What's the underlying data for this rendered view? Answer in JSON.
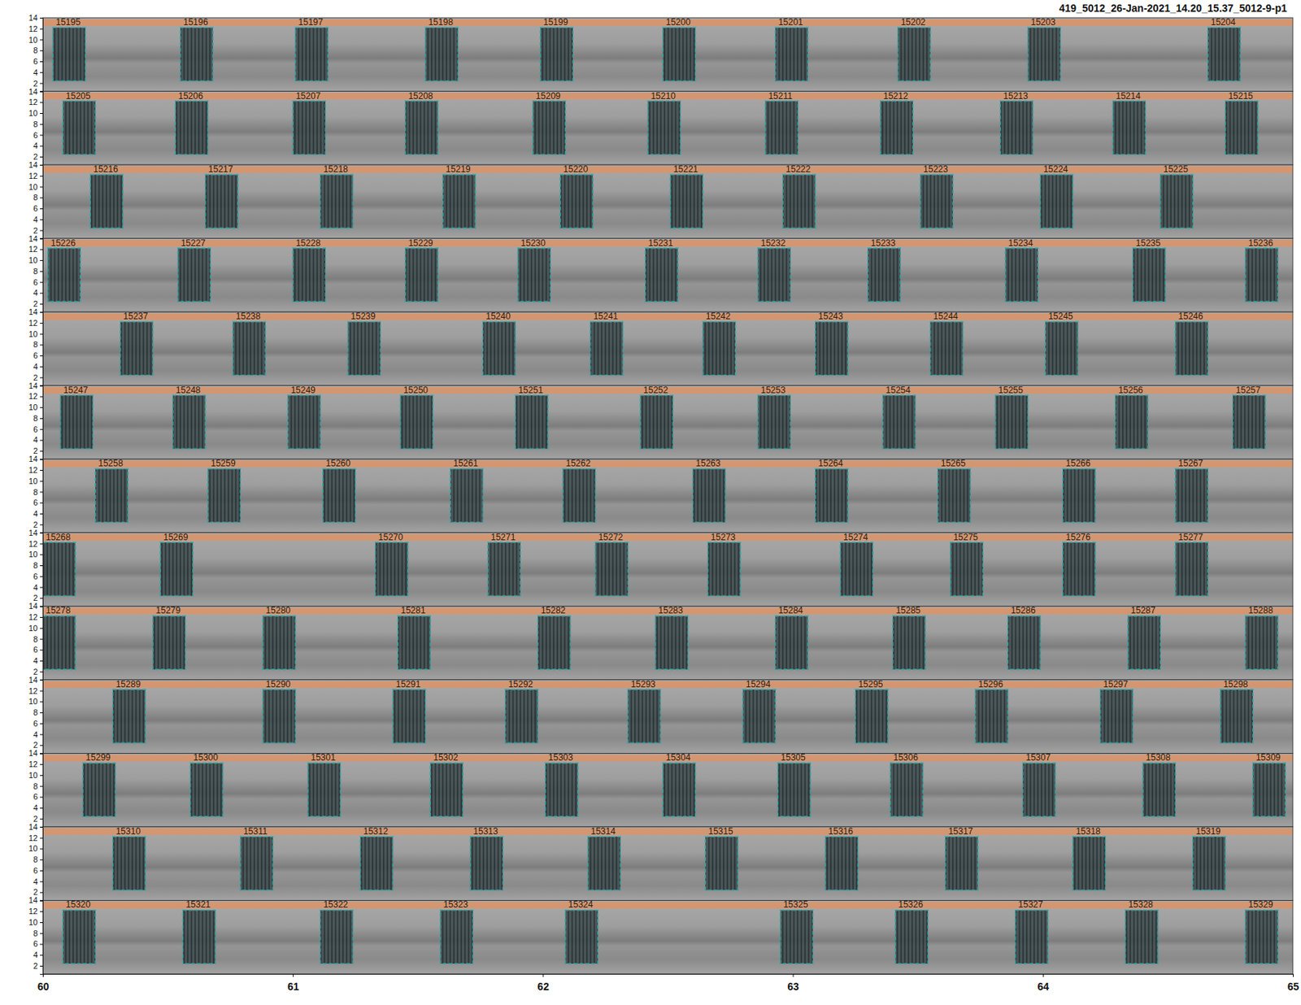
{
  "chart_data": {
    "type": "spectrogram_detections",
    "title": "419_5012_26-Jan-2021_14.20_15.37_5012-9-p1",
    "xlim": [
      60,
      65
    ],
    "xticks": [
      60,
      61,
      62,
      63,
      64,
      65
    ],
    "ylim": [
      0.5,
      14
    ],
    "yticks": [
      2,
      4,
      6,
      8,
      10,
      12,
      14
    ],
    "freq_low": 2.4,
    "freq_high": 12.2,
    "rows": [
      {
        "detections": [
          {
            "label": "15195",
            "start": 60.04,
            "end": 60.17
          },
          {
            "label": "15196",
            "start": 60.55,
            "end": 60.68
          },
          {
            "label": "15197",
            "start": 61.01,
            "end": 61.14
          },
          {
            "label": "15198",
            "start": 61.53,
            "end": 61.66
          },
          {
            "label": "15199",
            "start": 61.99,
            "end": 62.12
          },
          {
            "label": "15200",
            "start": 62.48,
            "end": 62.61
          },
          {
            "label": "15201",
            "start": 62.93,
            "end": 63.06
          },
          {
            "label": "15202",
            "start": 63.42,
            "end": 63.55
          },
          {
            "label": "15203",
            "start": 63.94,
            "end": 64.07
          },
          {
            "label": "15204",
            "start": 64.66,
            "end": 64.79
          }
        ]
      },
      {
        "detections": [
          {
            "label": "15205",
            "start": 60.08,
            "end": 60.21
          },
          {
            "label": "15206",
            "start": 60.53,
            "end": 60.66
          },
          {
            "label": "15207",
            "start": 61.0,
            "end": 61.13
          },
          {
            "label": "15208",
            "start": 61.45,
            "end": 61.58
          },
          {
            "label": "15209",
            "start": 61.96,
            "end": 62.09
          },
          {
            "label": "15210",
            "start": 62.42,
            "end": 62.55
          },
          {
            "label": "15211",
            "start": 62.89,
            "end": 63.02
          },
          {
            "label": "15212",
            "start": 63.35,
            "end": 63.48
          },
          {
            "label": "15213",
            "start": 63.83,
            "end": 63.96
          },
          {
            "label": "15214",
            "start": 64.28,
            "end": 64.41
          },
          {
            "label": "15215",
            "start": 64.73,
            "end": 64.86
          }
        ]
      },
      {
        "detections": [
          {
            "label": "15216",
            "start": 60.19,
            "end": 60.32
          },
          {
            "label": "15217",
            "start": 60.65,
            "end": 60.78
          },
          {
            "label": "15218",
            "start": 61.11,
            "end": 61.24
          },
          {
            "label": "15219",
            "start": 61.6,
            "end": 61.73
          },
          {
            "label": "15220",
            "start": 62.07,
            "end": 62.2
          },
          {
            "label": "15221",
            "start": 62.51,
            "end": 62.64
          },
          {
            "label": "15222",
            "start": 62.96,
            "end": 63.09
          },
          {
            "label": "15223",
            "start": 63.51,
            "end": 63.64
          },
          {
            "label": "15224",
            "start": 63.99,
            "end": 64.12
          },
          {
            "label": "15225",
            "start": 64.47,
            "end": 64.6
          }
        ]
      },
      {
        "detections": [
          {
            "label": "15226",
            "start": 60.02,
            "end": 60.15
          },
          {
            "label": "15227",
            "start": 60.54,
            "end": 60.67
          },
          {
            "label": "15228",
            "start": 61.0,
            "end": 61.13
          },
          {
            "label": "15229",
            "start": 61.45,
            "end": 61.58
          },
          {
            "label": "15230",
            "start": 61.9,
            "end": 62.03
          },
          {
            "label": "15231",
            "start": 62.41,
            "end": 62.54
          },
          {
            "label": "15232",
            "start": 62.86,
            "end": 62.99
          },
          {
            "label": "15233",
            "start": 63.3,
            "end": 63.43
          },
          {
            "label": "15234",
            "start": 63.85,
            "end": 63.98
          },
          {
            "label": "15235",
            "start": 64.36,
            "end": 64.49
          },
          {
            "label": "15236",
            "start": 64.81,
            "end": 64.94
          }
        ]
      },
      {
        "detections": [
          {
            "label": "15237",
            "start": 60.31,
            "end": 60.44
          },
          {
            "label": "15238",
            "start": 60.76,
            "end": 60.89
          },
          {
            "label": "15239",
            "start": 61.22,
            "end": 61.35
          },
          {
            "label": "15240",
            "start": 61.76,
            "end": 61.89
          },
          {
            "label": "15241",
            "start": 62.19,
            "end": 62.32
          },
          {
            "label": "15242",
            "start": 62.64,
            "end": 62.77
          },
          {
            "label": "15243",
            "start": 63.09,
            "end": 63.22
          },
          {
            "label": "15244",
            "start": 63.55,
            "end": 63.68
          },
          {
            "label": "15245",
            "start": 64.01,
            "end": 64.14
          },
          {
            "label": "15246",
            "start": 64.53,
            "end": 64.66
          }
        ]
      },
      {
        "detections": [
          {
            "label": "15247",
            "start": 60.07,
            "end": 60.2
          },
          {
            "label": "15248",
            "start": 60.52,
            "end": 60.65
          },
          {
            "label": "15249",
            "start": 60.98,
            "end": 61.11
          },
          {
            "label": "15250",
            "start": 61.43,
            "end": 61.56
          },
          {
            "label": "15251",
            "start": 61.89,
            "end": 62.02
          },
          {
            "label": "15252",
            "start": 62.39,
            "end": 62.52
          },
          {
            "label": "15253",
            "start": 62.86,
            "end": 62.99
          },
          {
            "label": "15254",
            "start": 63.36,
            "end": 63.49
          },
          {
            "label": "15255",
            "start": 63.81,
            "end": 63.94
          },
          {
            "label": "15256",
            "start": 64.29,
            "end": 64.42
          },
          {
            "label": "15257",
            "start": 64.76,
            "end": 64.89
          }
        ]
      },
      {
        "detections": [
          {
            "label": "15258",
            "start": 60.21,
            "end": 60.34
          },
          {
            "label": "15259",
            "start": 60.66,
            "end": 60.79
          },
          {
            "label": "15260",
            "start": 61.12,
            "end": 61.25
          },
          {
            "label": "15261",
            "start": 61.63,
            "end": 61.76
          },
          {
            "label": "15262",
            "start": 62.08,
            "end": 62.21
          },
          {
            "label": "15263",
            "start": 62.6,
            "end": 62.73
          },
          {
            "label": "15264",
            "start": 63.09,
            "end": 63.22
          },
          {
            "label": "15265",
            "start": 63.58,
            "end": 63.71
          },
          {
            "label": "15266",
            "start": 64.08,
            "end": 64.21
          },
          {
            "label": "15267",
            "start": 64.53,
            "end": 64.66
          }
        ]
      },
      {
        "detections": [
          {
            "label": "15268",
            "start": 60.0,
            "end": 60.13
          },
          {
            "label": "15269",
            "start": 60.47,
            "end": 60.6
          },
          {
            "label": "15270",
            "start": 61.33,
            "end": 61.46
          },
          {
            "label": "15271",
            "start": 61.78,
            "end": 61.91
          },
          {
            "label": "15272",
            "start": 62.21,
            "end": 62.34
          },
          {
            "label": "15273",
            "start": 62.66,
            "end": 62.79
          },
          {
            "label": "15274",
            "start": 63.19,
            "end": 63.32
          },
          {
            "label": "15275",
            "start": 63.63,
            "end": 63.76
          },
          {
            "label": "15276",
            "start": 64.08,
            "end": 64.21
          },
          {
            "label": "15277",
            "start": 64.53,
            "end": 64.66
          }
        ]
      },
      {
        "detections": [
          {
            "label": "15278",
            "start": 60.0,
            "end": 60.13
          },
          {
            "label": "15279",
            "start": 60.44,
            "end": 60.57
          },
          {
            "label": "15280",
            "start": 60.88,
            "end": 61.01
          },
          {
            "label": "15281",
            "start": 61.42,
            "end": 61.55
          },
          {
            "label": "15282",
            "start": 61.98,
            "end": 62.11
          },
          {
            "label": "15283",
            "start": 62.45,
            "end": 62.58
          },
          {
            "label": "15284",
            "start": 62.93,
            "end": 63.06
          },
          {
            "label": "15285",
            "start": 63.4,
            "end": 63.53
          },
          {
            "label": "15286",
            "start": 63.86,
            "end": 63.99
          },
          {
            "label": "15287",
            "start": 64.34,
            "end": 64.47
          },
          {
            "label": "15288",
            "start": 64.81,
            "end": 64.94
          }
        ]
      },
      {
        "detections": [
          {
            "label": "15289",
            "start": 60.28,
            "end": 60.41
          },
          {
            "label": "15290",
            "start": 60.88,
            "end": 61.01
          },
          {
            "label": "15291",
            "start": 61.4,
            "end": 61.53
          },
          {
            "label": "15292",
            "start": 61.85,
            "end": 61.98
          },
          {
            "label": "15293",
            "start": 62.34,
            "end": 62.47
          },
          {
            "label": "15294",
            "start": 62.8,
            "end": 62.93
          },
          {
            "label": "15295",
            "start": 63.25,
            "end": 63.38
          },
          {
            "label": "15296",
            "start": 63.73,
            "end": 63.86
          },
          {
            "label": "15297",
            "start": 64.23,
            "end": 64.36
          },
          {
            "label": "15298",
            "start": 64.71,
            "end": 64.84
          }
        ]
      },
      {
        "detections": [
          {
            "label": "15299",
            "start": 60.16,
            "end": 60.29
          },
          {
            "label": "15300",
            "start": 60.59,
            "end": 60.72
          },
          {
            "label": "15301",
            "start": 61.06,
            "end": 61.19
          },
          {
            "label": "15302",
            "start": 61.55,
            "end": 61.68
          },
          {
            "label": "15303",
            "start": 62.01,
            "end": 62.14
          },
          {
            "label": "15304",
            "start": 62.48,
            "end": 62.61
          },
          {
            "label": "15305",
            "start": 62.94,
            "end": 63.07
          },
          {
            "label": "15306",
            "start": 63.39,
            "end": 63.52
          },
          {
            "label": "15307",
            "start": 63.92,
            "end": 64.05
          },
          {
            "label": "15308",
            "start": 64.4,
            "end": 64.53
          },
          {
            "label": "15309",
            "start": 64.84,
            "end": 64.97
          }
        ]
      },
      {
        "detections": [
          {
            "label": "15310",
            "start": 60.28,
            "end": 60.41
          },
          {
            "label": "15311",
            "start": 60.79,
            "end": 60.92
          },
          {
            "label": "15312",
            "start": 61.27,
            "end": 61.4
          },
          {
            "label": "15313",
            "start": 61.71,
            "end": 61.84
          },
          {
            "label": "15314",
            "start": 62.18,
            "end": 62.31
          },
          {
            "label": "15315",
            "start": 62.65,
            "end": 62.78
          },
          {
            "label": "15316",
            "start": 63.13,
            "end": 63.26
          },
          {
            "label": "15317",
            "start": 63.61,
            "end": 63.74
          },
          {
            "label": "15318",
            "start": 64.12,
            "end": 64.25
          },
          {
            "label": "15319",
            "start": 64.6,
            "end": 64.73
          }
        ]
      },
      {
        "detections": [
          {
            "label": "15320",
            "start": 60.08,
            "end": 60.21
          },
          {
            "label": "15321",
            "start": 60.56,
            "end": 60.69
          },
          {
            "label": "15322",
            "start": 61.11,
            "end": 61.24
          },
          {
            "label": "15323",
            "start": 61.59,
            "end": 61.72
          },
          {
            "label": "15324",
            "start": 62.09,
            "end": 62.22
          },
          {
            "label": "15325",
            "start": 62.95,
            "end": 63.08
          },
          {
            "label": "15326",
            "start": 63.41,
            "end": 63.54
          },
          {
            "label": "15327",
            "start": 63.89,
            "end": 64.02
          },
          {
            "label": "15328",
            "start": 64.33,
            "end": 64.46
          },
          {
            "label": "15329",
            "start": 64.81,
            "end": 64.94
          }
        ]
      }
    ]
  }
}
